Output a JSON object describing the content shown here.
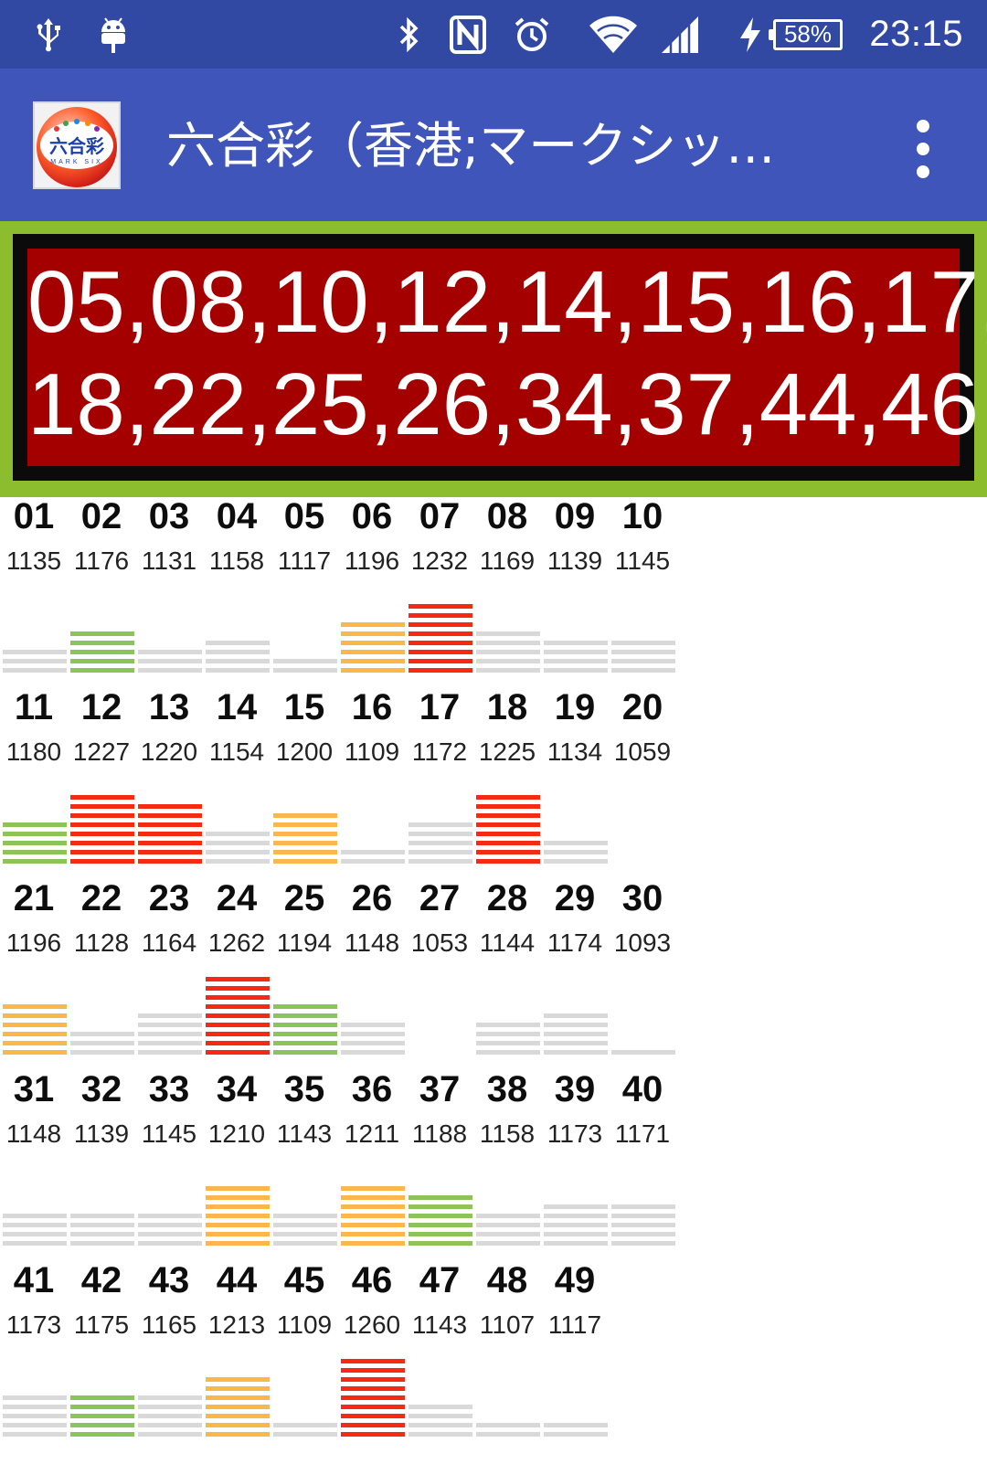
{
  "status_bar": {
    "icons": [
      "usb-icon",
      "android-debug-icon",
      "bluetooth-icon",
      "nfc-icon",
      "alarm-icon",
      "wifi-icon",
      "signal-icon",
      "charging-icon"
    ],
    "battery": "58%",
    "time": "23:15",
    "color": "#3249a4"
  },
  "app_bar": {
    "title": "六合彩（香港;マークシッ…",
    "logo_icon": "mark-six-logo-icon",
    "menu_icon": "overflow-menu-icon",
    "color": "#3f55b9"
  },
  "result": {
    "line1": "05,08,10,12,14,15,16,17,",
    "line2": "18,22,25,26,34,37,44,46",
    "background": "#a40000",
    "frame_color": "#0b0b0b",
    "border_color": "#8bbd2f"
  },
  "colors": {
    "gray": "#d9d9d9",
    "green": "#8cc45a",
    "orange": "#fbb64c",
    "red": "#f42a12"
  },
  "stats": [
    {
      "num": "01",
      "count": "1135",
      "level": 3,
      "color": "gray"
    },
    {
      "num": "02",
      "count": "1176",
      "level": 5,
      "color": "green"
    },
    {
      "num": "03",
      "count": "1131",
      "level": 3,
      "color": "gray"
    },
    {
      "num": "04",
      "count": "1158",
      "level": 4,
      "color": "gray"
    },
    {
      "num": "05",
      "count": "1117",
      "level": 2,
      "color": "gray"
    },
    {
      "num": "06",
      "count": "1196",
      "level": 6,
      "color": "orange"
    },
    {
      "num": "07",
      "count": "1232",
      "level": 8,
      "color": "red"
    },
    {
      "num": "08",
      "count": "1169",
      "level": 5,
      "color": "gray"
    },
    {
      "num": "09",
      "count": "1139",
      "level": 4,
      "color": "gray"
    },
    {
      "num": "10",
      "count": "1145",
      "level": 4,
      "color": "gray"
    },
    {
      "num": "11",
      "count": "1180",
      "level": 5,
      "color": "green"
    },
    {
      "num": "12",
      "count": "1227",
      "level": 8,
      "color": "red"
    },
    {
      "num": "13",
      "count": "1220",
      "level": 7,
      "color": "red"
    },
    {
      "num": "14",
      "count": "1154",
      "level": 4,
      "color": "gray"
    },
    {
      "num": "15",
      "count": "1200",
      "level": 6,
      "color": "orange"
    },
    {
      "num": "16",
      "count": "1109",
      "level": 2,
      "color": "gray"
    },
    {
      "num": "17",
      "count": "1172",
      "level": 5,
      "color": "gray"
    },
    {
      "num": "18",
      "count": "1225",
      "level": 8,
      "color": "red"
    },
    {
      "num": "19",
      "count": "1134",
      "level": 3,
      "color": "gray"
    },
    {
      "num": "20",
      "count": "1059",
      "level": 0,
      "color": "gray"
    },
    {
      "num": "21",
      "count": "1196",
      "level": 6,
      "color": "orange"
    },
    {
      "num": "22",
      "count": "1128",
      "level": 3,
      "color": "gray"
    },
    {
      "num": "23",
      "count": "1164",
      "level": 5,
      "color": "gray"
    },
    {
      "num": "24",
      "count": "1262",
      "level": 9,
      "color": "red"
    },
    {
      "num": "25",
      "count": "1194",
      "level": 6,
      "color": "green"
    },
    {
      "num": "26",
      "count": "1148",
      "level": 4,
      "color": "gray"
    },
    {
      "num": "27",
      "count": "1053",
      "level": 0,
      "color": "gray"
    },
    {
      "num": "28",
      "count": "1144",
      "level": 4,
      "color": "gray"
    },
    {
      "num": "29",
      "count": "1174",
      "level": 5,
      "color": "gray"
    },
    {
      "num": "30",
      "count": "1093",
      "level": 1,
      "color": "gray"
    },
    {
      "num": "31",
      "count": "1148",
      "level": 4,
      "color": "gray"
    },
    {
      "num": "32",
      "count": "1139",
      "level": 4,
      "color": "gray"
    },
    {
      "num": "33",
      "count": "1145",
      "level": 4,
      "color": "gray"
    },
    {
      "num": "34",
      "count": "1210",
      "level": 7,
      "color": "orange"
    },
    {
      "num": "35",
      "count": "1143",
      "level": 4,
      "color": "gray"
    },
    {
      "num": "36",
      "count": "1211",
      "level": 7,
      "color": "orange"
    },
    {
      "num": "37",
      "count": "1188",
      "level": 6,
      "color": "green"
    },
    {
      "num": "38",
      "count": "1158",
      "level": 4,
      "color": "gray"
    },
    {
      "num": "39",
      "count": "1173",
      "level": 5,
      "color": "gray"
    },
    {
      "num": "40",
      "count": "1171",
      "level": 5,
      "color": "gray"
    },
    {
      "num": "41",
      "count": "1173",
      "level": 5,
      "color": "gray"
    },
    {
      "num": "42",
      "count": "1175",
      "level": 5,
      "color": "green"
    },
    {
      "num": "43",
      "count": "1165",
      "level": 5,
      "color": "gray"
    },
    {
      "num": "44",
      "count": "1213",
      "level": 7,
      "color": "orange"
    },
    {
      "num": "45",
      "count": "1109",
      "level": 2,
      "color": "gray"
    },
    {
      "num": "46",
      "count": "1260",
      "level": 9,
      "color": "red"
    },
    {
      "num": "47",
      "count": "1143",
      "level": 4,
      "color": "gray"
    },
    {
      "num": "48",
      "count": "1107",
      "level": 2,
      "color": "gray"
    },
    {
      "num": "49",
      "count": "1117",
      "level": 2,
      "color": "gray"
    }
  ]
}
